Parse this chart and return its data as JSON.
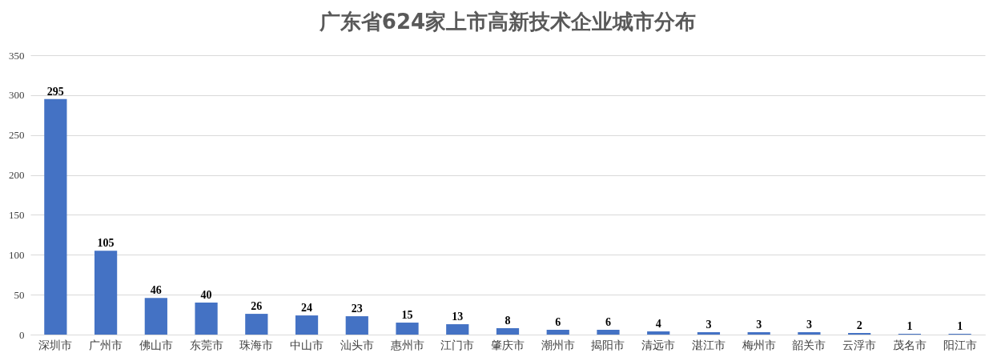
{
  "chart_data": {
    "type": "bar",
    "title": "广东省624家上市高新技术企业城市分布",
    "categories": [
      "深圳市",
      "广州市",
      "佛山市",
      "东莞市",
      "珠海市",
      "中山市",
      "汕头市",
      "惠州市",
      "江门市",
      "肇庆市",
      "潮州市",
      "揭阳市",
      "清远市",
      "湛江市",
      "梅州市",
      "韶关市",
      "云浮市",
      "茂名市",
      "阳江市"
    ],
    "values": [
      295,
      105,
      46,
      40,
      26,
      24,
      23,
      15,
      13,
      8,
      6,
      6,
      4,
      3,
      3,
      3,
      2,
      1,
      1
    ],
    "color": "#4472c4",
    "ylim": [
      0,
      350
    ],
    "yticks": [
      0,
      50,
      100,
      150,
      200,
      250,
      300,
      350
    ],
    "grid": "y",
    "data_labels": true
  }
}
